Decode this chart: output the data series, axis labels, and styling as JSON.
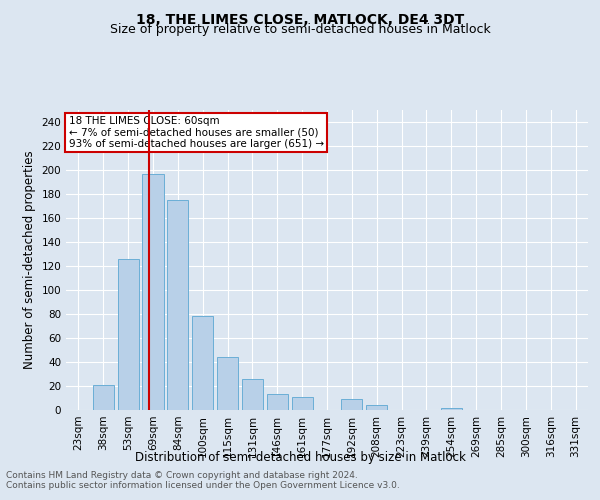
{
  "title": "18, THE LIMES CLOSE, MATLOCK, DE4 3DT",
  "subtitle": "Size of property relative to semi-detached houses in Matlock",
  "xlabel": "Distribution of semi-detached houses by size in Matlock",
  "ylabel": "Number of semi-detached properties",
  "footnote1": "Contains HM Land Registry data © Crown copyright and database right 2024.",
  "footnote2": "Contains public sector information licensed under the Open Government Licence v3.0.",
  "annotation_line1": "18 THE LIMES CLOSE: 60sqm",
  "annotation_line2": "← 7% of semi-detached houses are smaller (50)",
  "annotation_line3": "93% of semi-detached houses are larger (651) →",
  "categories": [
    "23sqm",
    "38sqm",
    "53sqm",
    "69sqm",
    "84sqm",
    "100sqm",
    "115sqm",
    "131sqm",
    "146sqm",
    "161sqm",
    "177sqm",
    "192sqm",
    "208sqm",
    "223sqm",
    "239sqm",
    "254sqm",
    "269sqm",
    "285sqm",
    "300sqm",
    "316sqm",
    "331sqm"
  ],
  "values": [
    0,
    21,
    126,
    197,
    175,
    78,
    44,
    26,
    13,
    11,
    0,
    9,
    4,
    0,
    0,
    2,
    0,
    0,
    0,
    0,
    0
  ],
  "bar_color": "#b8d0e8",
  "bar_edge_color": "#6baed6",
  "background_color": "#dce6f1",
  "red_line_x": 2.85,
  "ylim": [
    0,
    250
  ],
  "yticks": [
    0,
    20,
    40,
    60,
    80,
    100,
    120,
    140,
    160,
    180,
    200,
    220,
    240
  ],
  "vline_color": "#cc0000",
  "annotation_box_color": "#cc0000",
  "title_fontsize": 10,
  "subtitle_fontsize": 9,
  "axis_label_fontsize": 8.5,
  "tick_fontsize": 7.5,
  "annotation_fontsize": 7.5,
  "footnote_fontsize": 6.5
}
